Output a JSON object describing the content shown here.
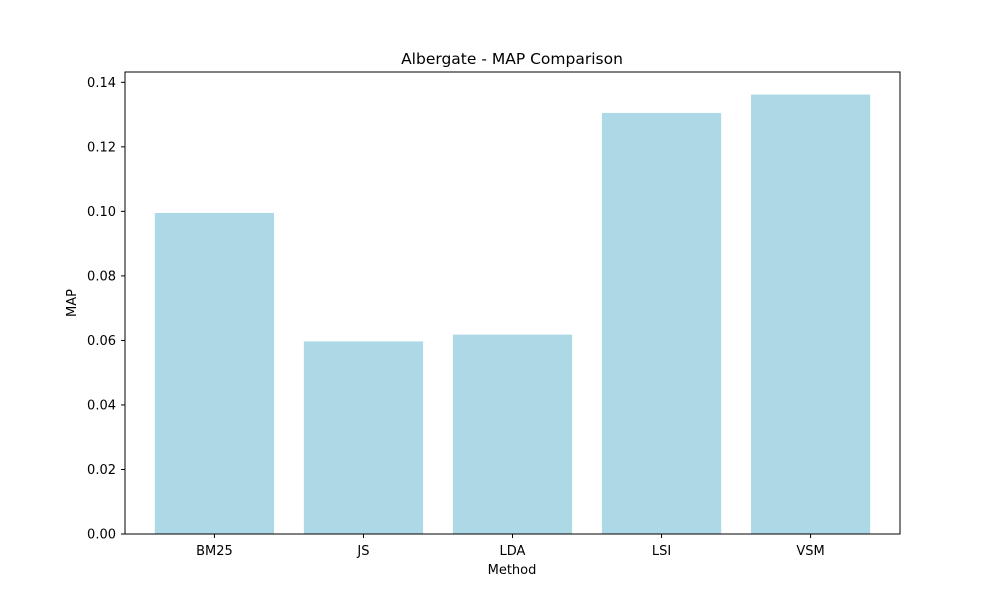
{
  "chart_data": {
    "type": "bar",
    "title": "Albergate - MAP Comparison",
    "xlabel": "Method",
    "ylabel": "MAP",
    "categories": [
      "BM25",
      "JS",
      "LDA",
      "LSI",
      "VSM"
    ],
    "values": [
      0.0995,
      0.0597,
      0.0618,
      0.1305,
      0.1362
    ],
    "ylim": [
      0,
      0.1432
    ],
    "yticks": [
      0.0,
      0.02,
      0.04,
      0.06,
      0.08,
      0.1,
      0.12,
      0.14
    ],
    "ytick_labels": [
      "0.00",
      "0.02",
      "0.04",
      "0.06",
      "0.08",
      "0.10",
      "0.12",
      "0.14"
    ],
    "bar_color": "#add8e6",
    "grid": false,
    "legend": false
  }
}
